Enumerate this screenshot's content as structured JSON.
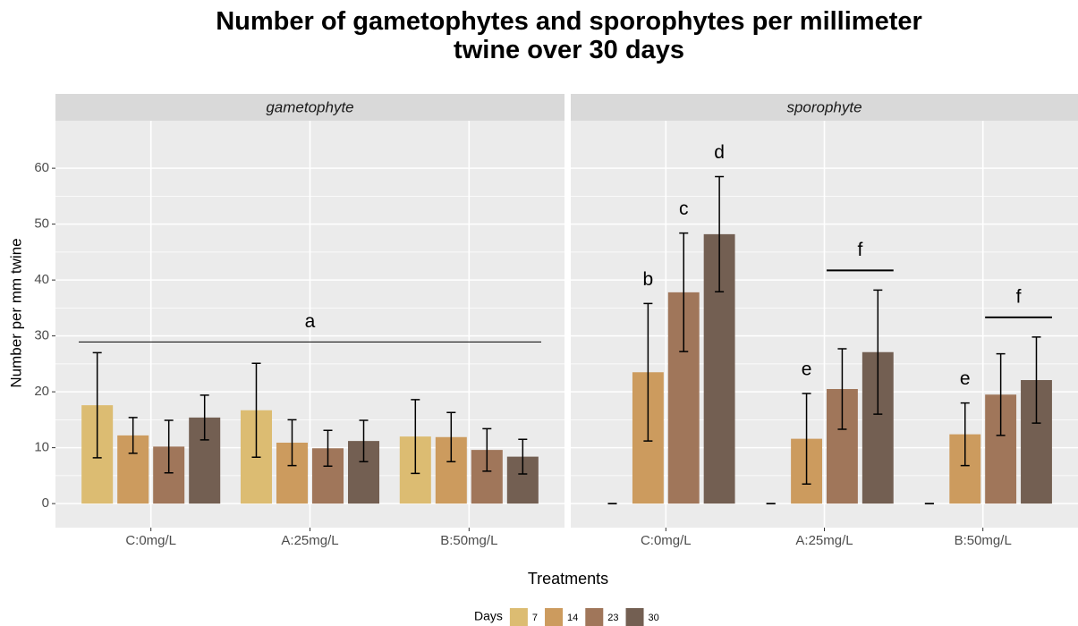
{
  "chart_data": {
    "type": "bar",
    "title": "Number of gametophytes and sporophytes per millimeter twine over 30 days",
    "x_label": "Treatments",
    "y_label": "Number per mm twine",
    "legend_title": "Days",
    "categories": [
      "C:0mg/L",
      "A:25mg/L",
      "B:50mg/L"
    ],
    "series": [
      {
        "name": "7",
        "color": "#dcbc72"
      },
      {
        "name": "14",
        "color": "#cc9b5e"
      },
      {
        "name": "23",
        "color": "#a0765a"
      },
      {
        "name": "30",
        "color": "#735f52"
      }
    ],
    "ylim": [
      -4.3,
      68.5
    ],
    "yticks": [
      0,
      10,
      20,
      30,
      40,
      50,
      60
    ],
    "grid": true,
    "panels": [
      {
        "label": "gametophyte",
        "series": [
          {
            "values": [
              17.6,
              16.7,
              12.0
            ],
            "errors": [
              9.4,
              8.4,
              6.6
            ]
          },
          {
            "values": [
              12.2,
              10.9,
              11.9
            ],
            "errors": [
              3.2,
              4.1,
              4.4
            ]
          },
          {
            "values": [
              10.2,
              9.9,
              9.6
            ],
            "errors": [
              4.7,
              3.2,
              3.8
            ]
          },
          {
            "values": [
              15.4,
              11.2,
              8.4
            ],
            "errors": [
              4.0,
              3.7,
              3.1
            ]
          }
        ],
        "annotations": [
          {
            "text": "a",
            "line": true
          }
        ]
      },
      {
        "label": "sporophyte",
        "series": [
          {
            "values": [
              0,
              0,
              0
            ],
            "errors": [
              0,
              0,
              0
            ]
          },
          {
            "values": [
              23.5,
              11.6,
              12.4
            ],
            "errors": [
              12.3,
              8.1,
              5.6
            ]
          },
          {
            "values": [
              37.8,
              20.5,
              19.5
            ],
            "errors": [
              10.6,
              7.2,
              7.3
            ]
          },
          {
            "values": [
              48.2,
              27.1,
              22.1
            ],
            "errors": [
              10.3,
              11.1,
              7.7
            ]
          }
        ],
        "annotations": [
          {
            "text": "b",
            "category": 0,
            "series": [
              1
            ]
          },
          {
            "text": "c",
            "category": 0,
            "series": [
              2
            ]
          },
          {
            "text": "d",
            "category": 0,
            "series": [
              3
            ]
          },
          {
            "text": "e",
            "category": 1,
            "series": [
              1
            ]
          },
          {
            "text": "f",
            "category": 1,
            "series": [
              2,
              3
            ],
            "line": true
          },
          {
            "text": "e",
            "category": 2,
            "series": [
              1
            ]
          },
          {
            "text": "f",
            "category": 2,
            "series": [
              2,
              3
            ],
            "line": true
          }
        ]
      }
    ]
  }
}
